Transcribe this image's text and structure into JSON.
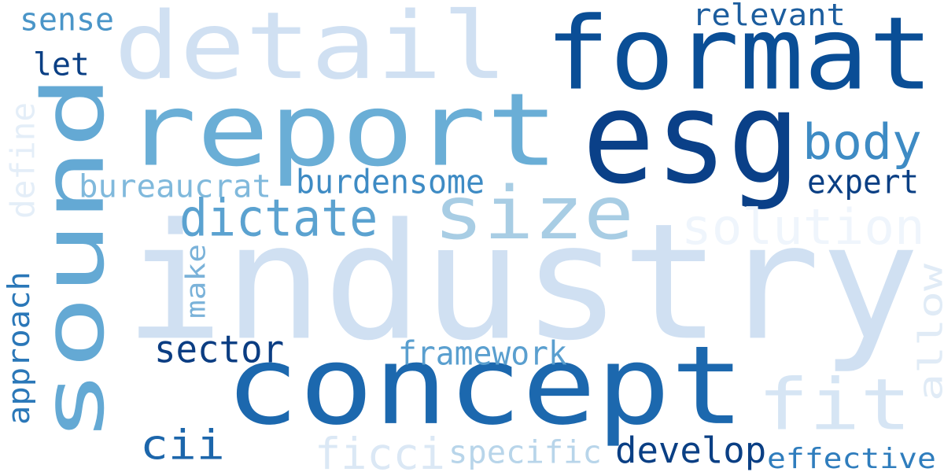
{
  "words": [
    {
      "id": "industry",
      "text": "industry",
      "color": "#d0e0f2"
    },
    {
      "id": "detail",
      "text": "detail",
      "color": "#d0e0f2"
    },
    {
      "id": "report",
      "text": "report",
      "color": "#6aaed6"
    },
    {
      "id": "format",
      "text": "format",
      "color": "#0a4e96"
    },
    {
      "id": "esg",
      "text": "esg",
      "color": "#0a4088"
    },
    {
      "id": "sound",
      "text": "sound",
      "color": "#64a9d4"
    },
    {
      "id": "concept",
      "text": "concept",
      "color": "#1c68ae"
    },
    {
      "id": "size",
      "text": "size",
      "color": "#a8cde4"
    },
    {
      "id": "fit",
      "text": "fit",
      "color": "#d6e5f4"
    },
    {
      "id": "dictate",
      "text": "dictate",
      "color": "#5ba2d0"
    },
    {
      "id": "body",
      "text": "body",
      "color": "#3e8bc4"
    },
    {
      "id": "solution",
      "text": "solution",
      "color": "#eff5fc"
    },
    {
      "id": "sense",
      "text": "sense",
      "color": "#4a95c8"
    },
    {
      "id": "relevant",
      "text": "relevant",
      "color": "#1c5d9e"
    },
    {
      "id": "let",
      "text": "let",
      "color": "#0a3f84"
    },
    {
      "id": "define",
      "text": "define",
      "color": "#e4eef8"
    },
    {
      "id": "bureaucrat",
      "text": "bureaucrat",
      "color": "#80b9dc"
    },
    {
      "id": "burdensome",
      "text": "burdensome",
      "color": "#3e8bc4"
    },
    {
      "id": "expert",
      "text": "expert",
      "color": "#0a3f84"
    },
    {
      "id": "make",
      "text": "make",
      "color": "#7ab2d9"
    },
    {
      "id": "approach",
      "text": "approach",
      "color": "#2a77b8"
    },
    {
      "id": "allow",
      "text": "allow",
      "color": "#e0ebf6"
    },
    {
      "id": "sector",
      "text": "sector",
      "color": "#0b3d82"
    },
    {
      "id": "framework",
      "text": "framework",
      "color": "#5a9fcf"
    },
    {
      "id": "cii",
      "text": "cii",
      "color": "#1c66ab"
    },
    {
      "id": "ficci",
      "text": "ficci",
      "color": "#dbe8f5"
    },
    {
      "id": "specific",
      "text": "specific",
      "color": "#b8d5ea"
    },
    {
      "id": "develop",
      "text": "develop",
      "color": "#0a3f84"
    },
    {
      "id": "effective",
      "text": "effective",
      "color": "#2f7dbd"
    }
  ]
}
